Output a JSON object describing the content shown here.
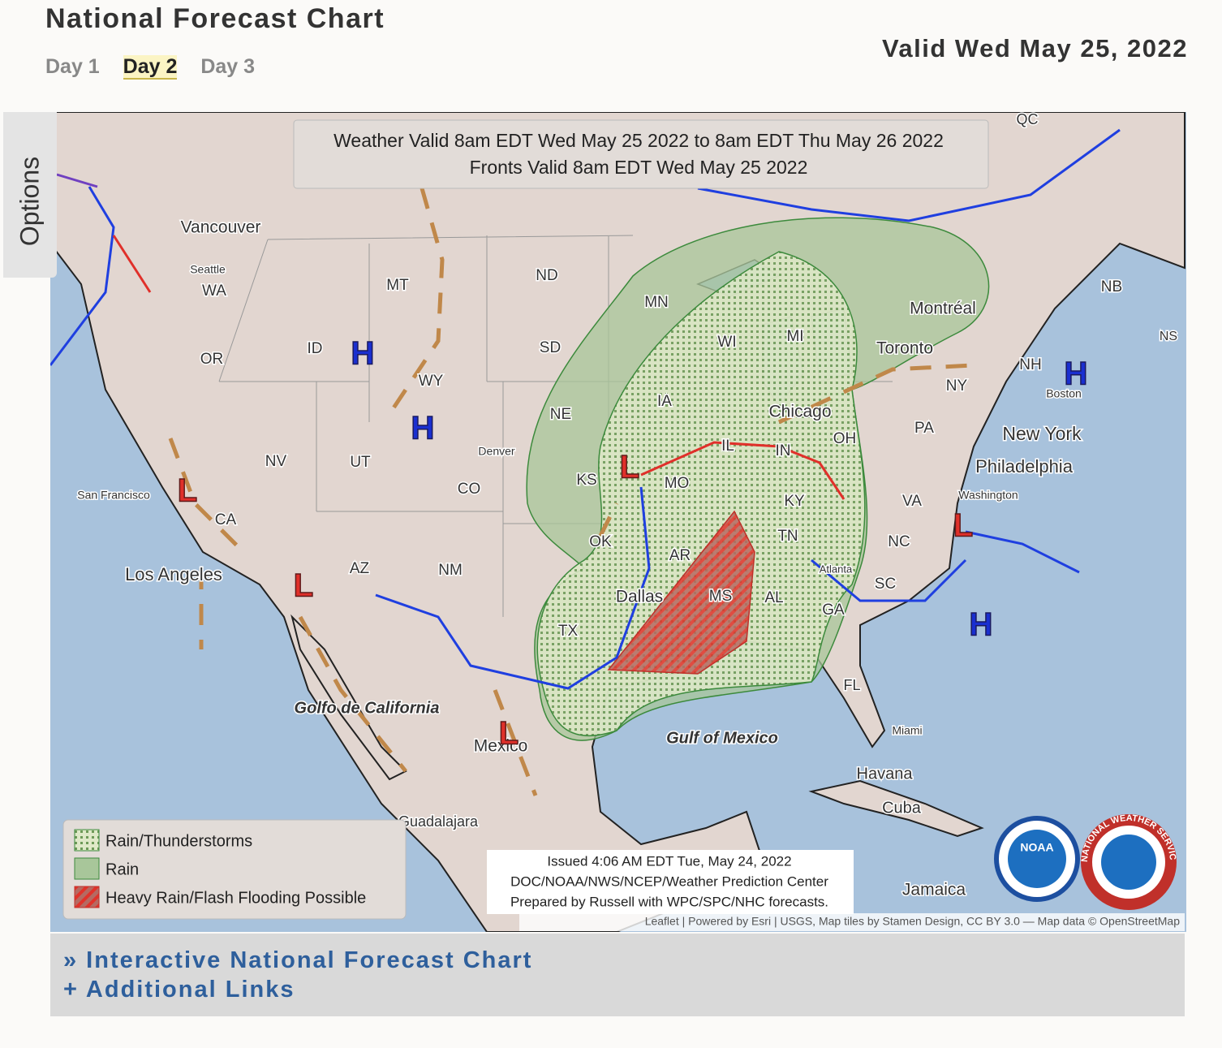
{
  "header": {
    "title": "National Forecast Chart",
    "tabs": [
      "Day 1",
      "Day 2",
      "Day 3"
    ],
    "selected_tab": 1,
    "valid_date": "Valid Wed May 25, 2022"
  },
  "sidebar": {
    "label": "Options"
  },
  "map": {
    "banner": [
      "Weather Valid 8am EDT Wed May 25 2022 to 8am EDT Thu May 26 2022",
      "Fronts Valid 8am EDT Wed May 25 2022"
    ],
    "labels": [
      "Vancouver",
      "Seattle",
      "WA",
      "OR",
      "ID",
      "MT",
      "ND",
      "MN",
      "SD",
      "WY",
      "NE",
      "IA",
      "WI",
      "MI",
      "Montréal",
      "Toronto",
      "NY",
      "NB",
      "NH",
      "Boston",
      "New York",
      "PA",
      "Philadelphia",
      "OH",
      "Chicago",
      "IL",
      "IN",
      "KY",
      "MO",
      "KS",
      "Denver",
      "CO",
      "UT",
      "NV",
      "CA",
      "San Francisco",
      "Los Angeles",
      "AZ",
      "NM",
      "OK",
      "TX",
      "Dallas",
      "AR",
      "TN",
      "MS",
      "AL",
      "GA",
      "SC",
      "NC",
      "VA",
      "Washington",
      "Atlanta",
      "FL",
      "Miami",
      "Havana",
      "Cuba",
      "Jamaica",
      "Gulf of Mexico",
      "Golfo de California",
      "Mexico",
      "Guadalajara",
      "QC",
      "NS"
    ],
    "pressure_centers": [
      "H",
      "H",
      "H",
      "H",
      "L",
      "L",
      "L",
      "L",
      "L"
    ],
    "legend": [
      "Rain/Thunderstorms",
      "Rain",
      "Heavy Rain/Flash Flooding Possible"
    ],
    "issued": [
      "Issued 4:06 AM EDT Tue, May 24, 2022",
      "DOC/NOAA/NWS/NCEP/Weather Prediction Center",
      "Prepared by Russell with WPC/SPC/NHC forecasts."
    ],
    "attribution": "Leaflet | Powered by Esri | USGS, Map tiles by Stamen Design, CC BY 3.0 — Map data © OpenStreetMap",
    "logos": [
      "NOAA",
      "NATIONAL WEATHER SERVICE"
    ]
  },
  "footer": {
    "links": [
      "» Interactive National Forecast Chart",
      "+ Additional Links"
    ]
  }
}
